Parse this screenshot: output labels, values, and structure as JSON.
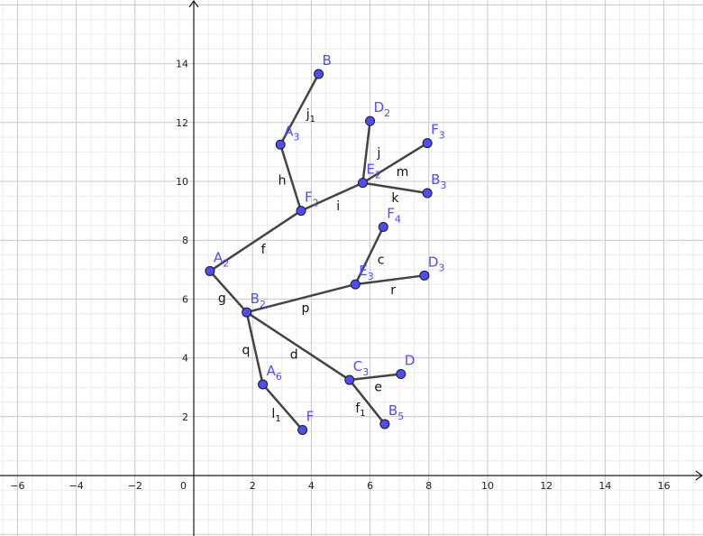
{
  "colors": {
    "point_fill": "#4d4dff",
    "point_stroke": "#1a1a1a",
    "point_label": "#4d4dff",
    "segment": "#444444",
    "axis": "#1a1a1a",
    "grid_major": "#c8c8c8",
    "grid_minor": "#ececec"
  },
  "axes": {
    "xlim": [
      -6.5,
      17.3
    ],
    "ylim": [
      -2,
      16
    ],
    "x_ticks": [
      -6,
      -4,
      -2,
      2,
      4,
      6,
      8,
      10,
      12,
      14,
      16
    ],
    "y_ticks": [
      2,
      4,
      6,
      8,
      10,
      12,
      14
    ],
    "origin_label": "0",
    "major_step": 2,
    "minor_step": 0.5
  },
  "points": [
    {
      "id": "B",
      "main": "B",
      "sub": "",
      "x": 4.25,
      "y": 13.65
    },
    {
      "id": "A3",
      "main": "A",
      "sub": "3",
      "x": 2.95,
      "y": 11.25
    },
    {
      "id": "D2",
      "main": "D",
      "sub": "2",
      "x": 6.0,
      "y": 12.05
    },
    {
      "id": "F3",
      "main": "F",
      "sub": "3",
      "x": 7.95,
      "y": 11.3
    },
    {
      "id": "E2",
      "main": "E",
      "sub": "2",
      "x": 5.75,
      "y": 9.95
    },
    {
      "id": "B3",
      "main": "B",
      "sub": "3",
      "x": 7.95,
      "y": 9.6
    },
    {
      "id": "F2",
      "main": "F",
      "sub": "2",
      "x": 3.65,
      "y": 9.0
    },
    {
      "id": "F4",
      "main": "F",
      "sub": "4",
      "x": 6.45,
      "y": 8.45
    },
    {
      "id": "A2",
      "main": "A",
      "sub": "2",
      "x": 0.55,
      "y": 6.95
    },
    {
      "id": "E3",
      "main": "E",
      "sub": "3",
      "x": 5.5,
      "y": 6.5
    },
    {
      "id": "D3",
      "main": "D",
      "sub": "3",
      "x": 7.85,
      "y": 6.8
    },
    {
      "id": "B2",
      "main": "B",
      "sub": "2",
      "x": 1.8,
      "y": 5.55
    },
    {
      "id": "C3",
      "main": "C",
      "sub": "3",
      "x": 5.3,
      "y": 3.25
    },
    {
      "id": "D",
      "main": "D",
      "sub": "",
      "x": 7.05,
      "y": 3.45
    },
    {
      "id": "A6",
      "main": "A",
      "sub": "6",
      "x": 2.35,
      "y": 3.1
    },
    {
      "id": "B5",
      "main": "B",
      "sub": "5",
      "x": 6.5,
      "y": 1.75
    },
    {
      "id": "F",
      "main": "F",
      "sub": "",
      "x": 3.7,
      "y": 1.55
    }
  ],
  "segments": [
    {
      "main": "j",
      "sub": "1",
      "from": "A3",
      "to": "B"
    },
    {
      "main": "h",
      "sub": "",
      "from": "F2",
      "to": "A3"
    },
    {
      "main": "j",
      "sub": "",
      "from": "E2",
      "to": "D2"
    },
    {
      "main": "m",
      "sub": "",
      "from": "E2",
      "to": "F3"
    },
    {
      "main": "k",
      "sub": "",
      "from": "E2",
      "to": "B3"
    },
    {
      "main": "i",
      "sub": "",
      "from": "F2",
      "to": "E2"
    },
    {
      "main": "f",
      "sub": "",
      "from": "A2",
      "to": "F2"
    },
    {
      "main": "c",
      "sub": "",
      "from": "E3",
      "to": "F4"
    },
    {
      "main": "r",
      "sub": "",
      "from": "E3",
      "to": "D3"
    },
    {
      "main": "p",
      "sub": "",
      "from": "B2",
      "to": "E3"
    },
    {
      "main": "g",
      "sub": "",
      "from": "A2",
      "to": "B2"
    },
    {
      "main": "d",
      "sub": "",
      "from": "B2",
      "to": "C3"
    },
    {
      "main": "e",
      "sub": "",
      "from": "C3",
      "to": "D"
    },
    {
      "main": "q",
      "sub": "",
      "from": "B2",
      "to": "A6"
    },
    {
      "main": "f",
      "sub": "1",
      "from": "C3",
      "to": "B5"
    },
    {
      "main": "l",
      "sub": "1",
      "from": "A6",
      "to": "F"
    }
  ]
}
